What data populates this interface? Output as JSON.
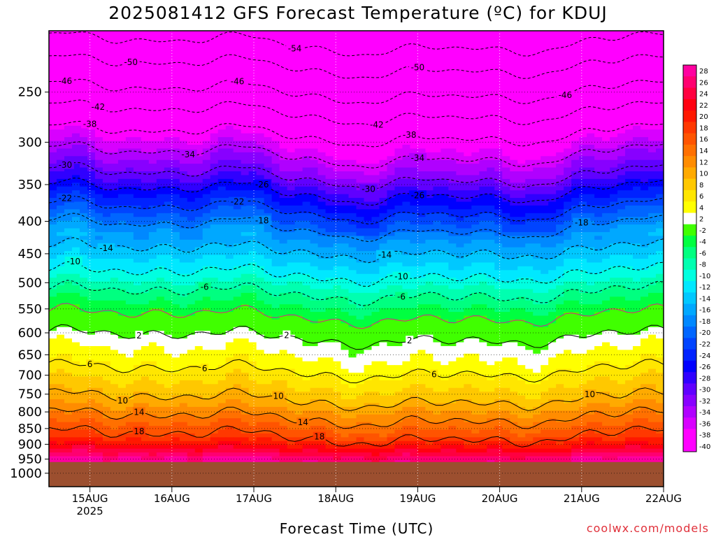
{
  "chart_data": {
    "type": "heatmap",
    "title": "2025081412 GFS Forecast Temperature (ºC) for KDUJ",
    "xlabel": "Forecast Time (UTC)",
    "ylabel": "",
    "credit": "coolwx.com/models",
    "x_ticks": [
      {
        "label": "15AUG",
        "sublabel": "2025",
        "x": 0.5
      },
      {
        "label": "16AUG",
        "sublabel": "",
        "x": 1.5
      },
      {
        "label": "17AUG",
        "sublabel": "",
        "x": 2.5
      },
      {
        "label": "18AUG",
        "sublabel": "",
        "x": 3.5
      },
      {
        "label": "19AUG",
        "sublabel": "",
        "x": 4.5
      },
      {
        "label": "20AUG",
        "sublabel": "",
        "x": 5.5
      },
      {
        "label": "21AUG",
        "sublabel": "",
        "x": 6.5
      },
      {
        "label": "22AUG",
        "sublabel": "",
        "x": 7.5
      }
    ],
    "xlim": [
      0,
      7.5
    ],
    "y_ticks": [
      250,
      300,
      350,
      400,
      450,
      500,
      550,
      600,
      650,
      700,
      750,
      800,
      850,
      900,
      950,
      1000
    ],
    "ylim": [
      1050,
      200
    ],
    "y_scale": "log",
    "ground_level_hpa": 960,
    "ground_color": "#9c4f2f",
    "colorbar": {
      "levels": [
        28,
        26,
        24,
        22,
        20,
        18,
        16,
        14,
        12,
        10,
        8,
        6,
        4,
        2,
        -2,
        -4,
        -6,
        -8,
        -10,
        -12,
        -14,
        -16,
        -18,
        -20,
        -22,
        -24,
        -26,
        -28,
        -30,
        -32,
        -34,
        -36,
        -38,
        -40
      ],
      "colors": [
        "#ff00a0",
        "#ff0070",
        "#ff0040",
        "#ff0010",
        "#ff1800",
        "#ff3800",
        "#ff5400",
        "#ff7000",
        "#ff8c00",
        "#ffaa00",
        "#ffc800",
        "#ffe600",
        "#ffff00",
        "#ffffff",
        "#40ff00",
        "#00ff40",
        "#00ff80",
        "#00ffb0",
        "#00ffe0",
        "#00e8ff",
        "#00c8ff",
        "#00a8ff",
        "#0088ff",
        "#0066ff",
        "#0044ff",
        "#0022ff",
        "#0000ff",
        "#3000ff",
        "#6000ff",
        "#8800ff",
        "#b000ff",
        "#d800ff",
        "#ff00ff",
        "#ff00ff"
      ]
    },
    "profile": [
      {
        "t": 28,
        "p": 950
      },
      {
        "t": 18,
        "p": 875
      },
      {
        "t": 14,
        "p": 818
      },
      {
        "t": 10,
        "p": 765
      },
      {
        "t": 6,
        "p": 690
      },
      {
        "t": 2,
        "p": 610
      },
      {
        "t": -2,
        "p": 565
      },
      {
        "t": -6,
        "p": 520
      },
      {
        "t": -10,
        "p": 485
      },
      {
        "t": -14,
        "p": 445
      },
      {
        "t": -18,
        "p": 410
      },
      {
        "t": -22,
        "p": 385
      },
      {
        "t": -26,
        "p": 360
      },
      {
        "t": -30,
        "p": 340
      },
      {
        "t": -34,
        "p": 315
      },
      {
        "t": -38,
        "p": 292
      },
      {
        "t": -42,
        "p": 270
      },
      {
        "t": -46,
        "p": 250
      },
      {
        "t": -50,
        "p": 228
      },
      {
        "t": -54,
        "p": 210
      }
    ],
    "isotherm_labels": [
      {
        "t": -54,
        "x": 3.0
      },
      {
        "t": -50,
        "x": 1.0
      },
      {
        "t": -50,
        "x": 4.5
      },
      {
        "t": -46,
        "x": 0.2
      },
      {
        "t": -46,
        "x": 2.3
      },
      {
        "t": -46,
        "x": 6.3
      },
      {
        "t": -42,
        "x": 0.6
      },
      {
        "t": -42,
        "x": 4.0
      },
      {
        "t": -38,
        "x": 0.5
      },
      {
        "t": -38,
        "x": 4.4
      },
      {
        "t": -34,
        "x": 1.7
      },
      {
        "t": -34,
        "x": 4.5
      },
      {
        "t": -30,
        "x": 0.2
      },
      {
        "t": -30,
        "x": 3.9
      },
      {
        "t": -26,
        "x": 2.6
      },
      {
        "t": -26,
        "x": 4.5
      },
      {
        "t": -22,
        "x": 0.2
      },
      {
        "t": -22,
        "x": 2.3
      },
      {
        "t": -18,
        "x": 2.6
      },
      {
        "t": -18,
        "x": 6.5
      },
      {
        "t": -14,
        "x": 0.7
      },
      {
        "t": -14,
        "x": 4.1
      },
      {
        "t": -10,
        "x": 0.3
      },
      {
        "t": -10,
        "x": 4.3
      },
      {
        "t": -6,
        "x": 1.9
      },
      {
        "t": -6,
        "x": 4.3
      },
      {
        "t": 2,
        "x": 1.1
      },
      {
        "t": 2,
        "x": 2.9
      },
      {
        "t": 2,
        "x": 4.4
      },
      {
        "t": 6,
        "x": 0.5
      },
      {
        "t": 6,
        "x": 1.9
      },
      {
        "t": 6,
        "x": 4.7
      },
      {
        "t": 10,
        "x": 0.9
      },
      {
        "t": 10,
        "x": 2.8
      },
      {
        "t": 10,
        "x": 6.6
      },
      {
        "t": 14,
        "x": 1.1
      },
      {
        "t": 14,
        "x": 3.1
      },
      {
        "t": 18,
        "x": 1.1
      },
      {
        "t": 18,
        "x": 3.3
      }
    ],
    "grid": true
  }
}
